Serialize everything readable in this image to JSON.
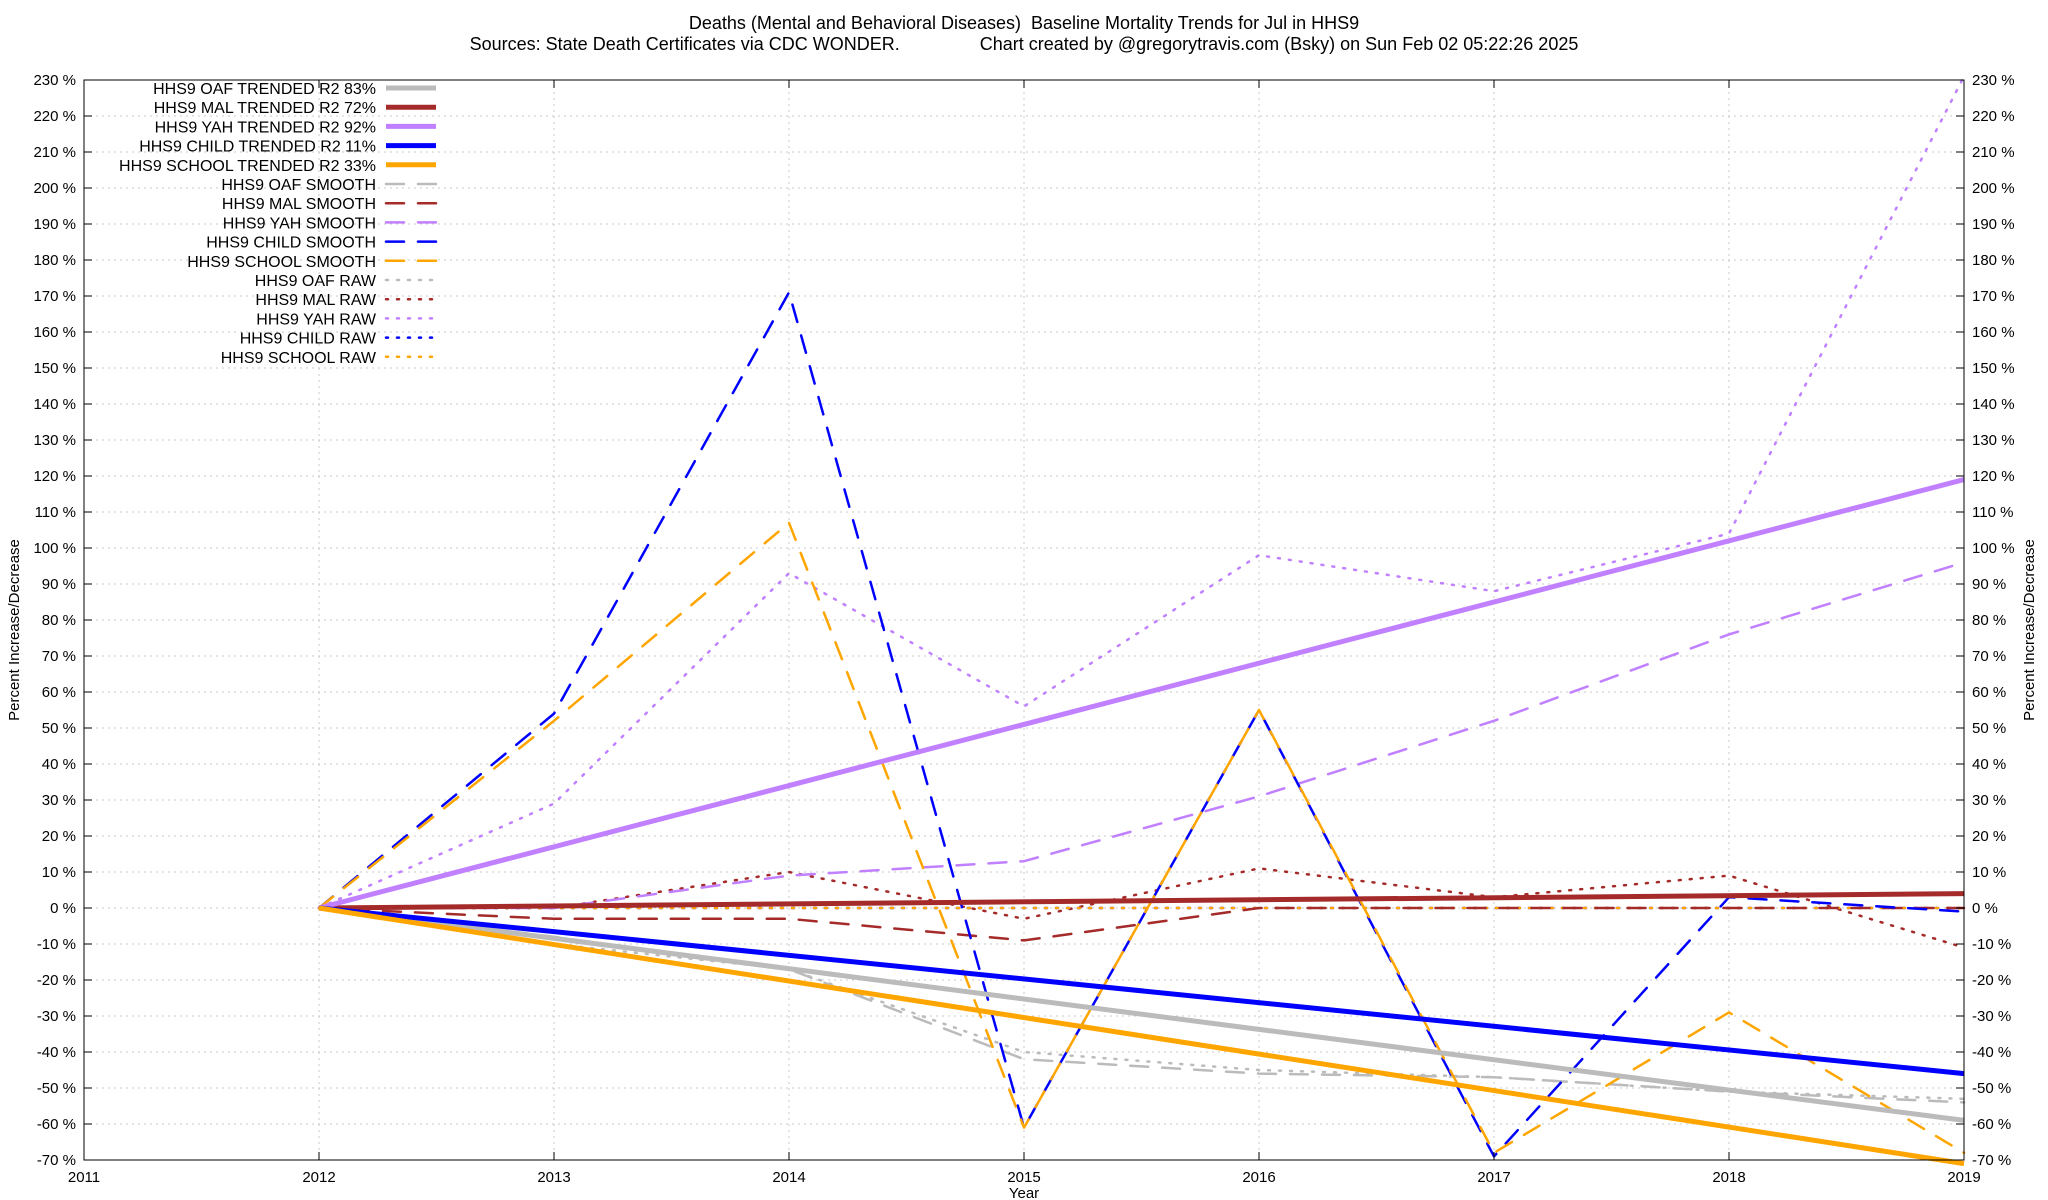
{
  "header": {
    "title": "Deaths (Mental and Behavioral Diseases)  Baseline Mortality Trends for Jul in HHS9",
    "subtitle": "Sources: State Death Certificates via CDC WONDER.                Chart created by @gregorytravis.com (Bsky) on Sun Feb 02 05:22:26 2025"
  },
  "chart_data": {
    "type": "line",
    "xlabel": "Year",
    "ylabel": "Percent Increase/Decrease",
    "xlim": [
      2011,
      2019
    ],
    "ylim": [
      -70,
      230
    ],
    "x_ticks": [
      "2011",
      "2012",
      "2013",
      "2014",
      "2015",
      "2016",
      "2017",
      "2018",
      "2019"
    ],
    "y_ticks": [
      "230 %",
      "220 %",
      "210 %",
      "200 %",
      "190 %",
      "180 %",
      "170 %",
      "160 %",
      "150 %",
      "140 %",
      "130 %",
      "120 %",
      "110 %",
      "100 %",
      "90 %",
      "80 %",
      "70 %",
      "60 %",
      "50 %",
      "40 %",
      "30 %",
      "20 %",
      "10 %",
      "0 %",
      "-10 %",
      "-20 %",
      "-30 %",
      "-40 %",
      "-50 %",
      "-60 %",
      "-70 %"
    ],
    "grid": true,
    "legend_position": "top-left",
    "series": [
      {
        "name": "HHS9 OAF TRENDED R2  83%",
        "style": "trend",
        "color": "#bbbbbb",
        "x": [
          2012,
          2019
        ],
        "y": [
          0,
          -59
        ]
      },
      {
        "name": "HHS9 MAL TRENDED R2  72%",
        "style": "trend",
        "color": "#a52a2a",
        "x": [
          2012,
          2019
        ],
        "y": [
          0,
          4
        ]
      },
      {
        "name": "HHS9 YAH TRENDED R2  92%",
        "style": "trend",
        "color": "#c080ff",
        "x": [
          2012,
          2019
        ],
        "y": [
          0,
          119
        ]
      },
      {
        "name": "HHS9 CHILD TRENDED R2  11%",
        "style": "trend",
        "color": "#0000ff",
        "x": [
          2012,
          2019
        ],
        "y": [
          0,
          -46
        ]
      },
      {
        "name": "HHS9 SCHOOL TRENDED R2  33%",
        "style": "trend",
        "color": "#ffa500",
        "x": [
          2012,
          2019
        ],
        "y": [
          0,
          -71
        ]
      },
      {
        "name": "HHS9 OAF SMOOTH",
        "style": "smooth",
        "color": "#bbbbbb",
        "x": [
          2012,
          2013,
          2014,
          2015,
          2016,
          2017,
          2018,
          2019
        ],
        "y": [
          0,
          -8,
          -17,
          -42,
          -46,
          -47,
          -51,
          -54
        ]
      },
      {
        "name": "HHS9 MAL SMOOTH",
        "style": "smooth",
        "color": "#a52a2a",
        "x": [
          2012,
          2013,
          2014,
          2015,
          2016,
          2017,
          2018,
          2019
        ],
        "y": [
          0,
          -3,
          -3,
          -9,
          0,
          0,
          0,
          0
        ]
      },
      {
        "name": "HHS9 YAH SMOOTH",
        "style": "smooth",
        "color": "#c080ff",
        "x": [
          2012,
          2013,
          2014,
          2015,
          2016,
          2017,
          2018,
          2019
        ],
        "y": [
          0,
          0,
          9,
          13,
          31,
          52,
          76,
          96
        ]
      },
      {
        "name": "HHS9 CHILD SMOOTH",
        "style": "smooth",
        "color": "#0000ff",
        "x": [
          2012,
          2013,
          2014,
          2015,
          2016,
          2017,
          2018,
          2019
        ],
        "y": [
          0,
          54,
          171,
          -61,
          55,
          -69,
          3,
          -1
        ]
      },
      {
        "name": "HHS9 SCHOOL SMOOTH",
        "style": "smooth",
        "color": "#ffa500",
        "x": [
          2012,
          2013,
          2014,
          2015,
          2016,
          2017,
          2018,
          2019
        ],
        "y": [
          0,
          52,
          107,
          -61,
          55,
          -68,
          -29,
          -68
        ]
      },
      {
        "name": "HHS9 OAF RAW",
        "style": "raw",
        "color": "#bbbbbb",
        "x": [
          2012,
          2013,
          2014,
          2015,
          2016,
          2017,
          2018,
          2019
        ],
        "y": [
          0,
          -10,
          -17,
          -40,
          -45,
          -47,
          -51,
          -53
        ]
      },
      {
        "name": "HHS9 MAL RAW",
        "style": "raw",
        "color": "#a52a2a",
        "x": [
          2012,
          2013,
          2014,
          2015,
          2016,
          2017,
          2018,
          2019
        ],
        "y": [
          0,
          0,
          10,
          -3,
          11,
          3,
          9,
          -11
        ]
      },
      {
        "name": "HHS9 YAH RAW",
        "style": "raw",
        "color": "#c080ff",
        "x": [
          2012,
          2013,
          2014,
          2015,
          2016,
          2017,
          2018,
          2019
        ],
        "y": [
          0,
          29,
          93,
          56,
          98,
          88,
          104,
          231
        ]
      },
      {
        "name": "HHS9 CHILD RAW",
        "style": "raw",
        "color": "#0000ff",
        "x": [
          2012,
          2013,
          2014,
          2015,
          2016,
          2017,
          2018,
          2019
        ],
        "y": [
          0,
          0,
          0,
          0,
          0,
          0,
          0,
          0
        ]
      },
      {
        "name": "HHS9 SCHOOL RAW",
        "style": "raw",
        "color": "#ffa500",
        "x": [
          2012,
          2013,
          2014,
          2015,
          2016,
          2017,
          2018,
          2019
        ],
        "y": [
          0,
          0,
          0,
          0,
          0,
          0,
          0,
          0
        ]
      }
    ]
  }
}
